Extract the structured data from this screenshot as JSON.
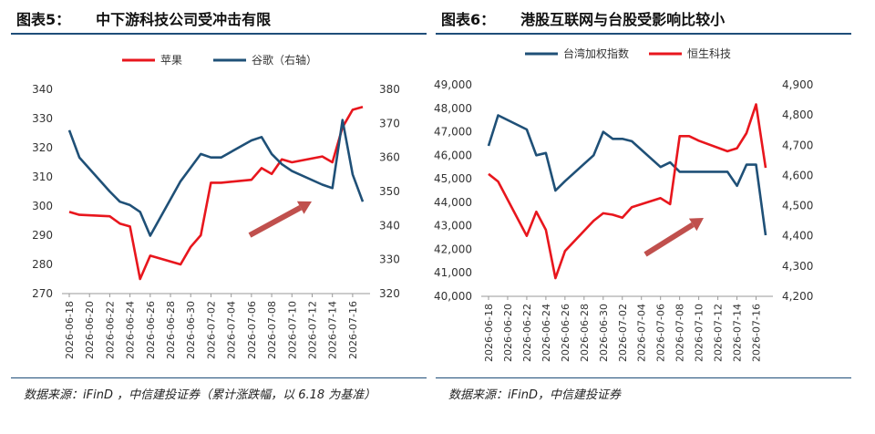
{
  "colors": {
    "red": "#e8161d",
    "blue": "#1f5077",
    "arrow": "#c0504d",
    "rule": "#1f4e79"
  },
  "charts": [
    {
      "title_no": "图表5：",
      "title_text": "中下游科技公司受冲击有限",
      "source": "数据来源：iFinD ，中信建投证券（累计涨跌幅，以 6.18 为基准）",
      "chart_data": {
        "type": "line",
        "dates": [
          "2026-06-18",
          "2026-06-19",
          "2026-06-22",
          "2026-06-23",
          "2026-06-24",
          "2026-06-25",
          "2026-06-26",
          "2026-06-29",
          "2026-06-30",
          "2026-07-01",
          "2026-07-02",
          "2026-07-03",
          "2026-07-06",
          "2026-07-07",
          "2026-07-08",
          "2026-07-09",
          "2026-07-10",
          "2026-07-13",
          "2026-07-14",
          "2026-07-15",
          "2026-07-16",
          "2026-07-17"
        ],
        "x_ticks": [
          "2026-06-18",
          "2026-06-20",
          "2026-06-22",
          "2026-06-24",
          "2026-06-26",
          "2026-06-28",
          "2026-06-30",
          "2026-07-02",
          "2026-07-04",
          "2026-07-06",
          "2026-07-08",
          "2026-07-10",
          "2026-07-12",
          "2026-07-14",
          "2026-07-16"
        ],
        "left_axis": {
          "min": 270,
          "max": 340,
          "ticks": [
            "270",
            "280",
            "290",
            "300",
            "310",
            "320",
            "330",
            "340"
          ]
        },
        "right_axis": {
          "min": 320,
          "max": 380,
          "ticks": [
            "320",
            "330",
            "340",
            "350",
            "360",
            "370",
            "380"
          ]
        },
        "series": [
          {
            "name": "苹果",
            "axis": "left",
            "color": "#e8161d",
            "values": [
              298,
              297,
              296.5,
              294,
              293,
              275,
              283,
              280,
              286,
              290,
              308,
              308,
              309,
              313,
              311,
              316,
              315,
              317,
              315,
              327,
              333,
              334
            ]
          },
          {
            "name": "谷歌（右轴）",
            "axis": "right",
            "color": "#1f5077",
            "values": [
              368,
              360,
              350,
              347,
              346,
              344,
              337,
              353,
              357,
              361,
              360,
              360,
              365,
              366,
              361,
              358,
              356,
              352,
              351,
              371,
              355,
              347
            ]
          }
        ],
        "legend": "top-center",
        "annotation": "arrow"
      }
    },
    {
      "title_no": "图表6：",
      "title_text": "港股互联网与台股受影响比较小",
      "source": "数据来源：iFinD，中信建投证券",
      "chart_data": {
        "type": "line",
        "dates": [
          "2026-06-18",
          "2026-06-19",
          "2026-06-22",
          "2026-06-23",
          "2026-06-24",
          "2026-06-25",
          "2026-06-26",
          "2026-06-29",
          "2026-06-30",
          "2026-07-01",
          "2026-07-02",
          "2026-07-03",
          "2026-07-06",
          "2026-07-07",
          "2026-07-08",
          "2026-07-09",
          "2026-07-10",
          "2026-07-13",
          "2026-07-14",
          "2026-07-15",
          "2026-07-16",
          "2026-07-17"
        ],
        "x_ticks": [
          "2026-06-18",
          "2026-06-20",
          "2026-06-22",
          "2026-06-24",
          "2026-06-26",
          "2026-06-28",
          "2026-06-30",
          "2026-07-02",
          "2026-07-04",
          "2026-07-06",
          "2026-07-08",
          "2026-07-10",
          "2026-07-12",
          "2026-07-14",
          "2026-07-16"
        ],
        "left_axis": {
          "min": 40000,
          "max": 49000,
          "ticks": [
            "40,000",
            "41,000",
            "42,000",
            "43,000",
            "44,000",
            "45,000",
            "46,000",
            "47,000",
            "48,000",
            "49,000"
          ]
        },
        "right_axis": {
          "min": 4200,
          "max": 4900,
          "ticks": [
            "4,200",
            "4,300",
            "4,400",
            "4,500",
            "4,600",
            "4,700",
            "4,800",
            "4,900"
          ]
        },
        "series": [
          {
            "name": "台湾加权指数",
            "axis": "left",
            "color": "#1f5077",
            "values": [
              46400,
              47700,
              47100,
              46000,
              46100,
              44500,
              44900,
              46000,
              47000,
              46700,
              46700,
              46600,
              45500,
              45700,
              45300,
              45300,
              45300,
              45300,
              44700,
              45600,
              45600,
              42600
            ]
          },
          {
            "name": "恒生科技",
            "axis": "right",
            "color": "#e8161d",
            "values": [
              4605,
              4580,
              4400,
              4480,
              4420,
              4260,
              4350,
              4450,
              4475,
              4470,
              4460,
              4495,
              4525,
              4505,
              4730,
              4730,
              4715,
              4680,
              4690,
              4740,
              4835,
              4625
            ]
          }
        ],
        "legend": "top-center",
        "annotation": "arrow"
      }
    }
  ]
}
